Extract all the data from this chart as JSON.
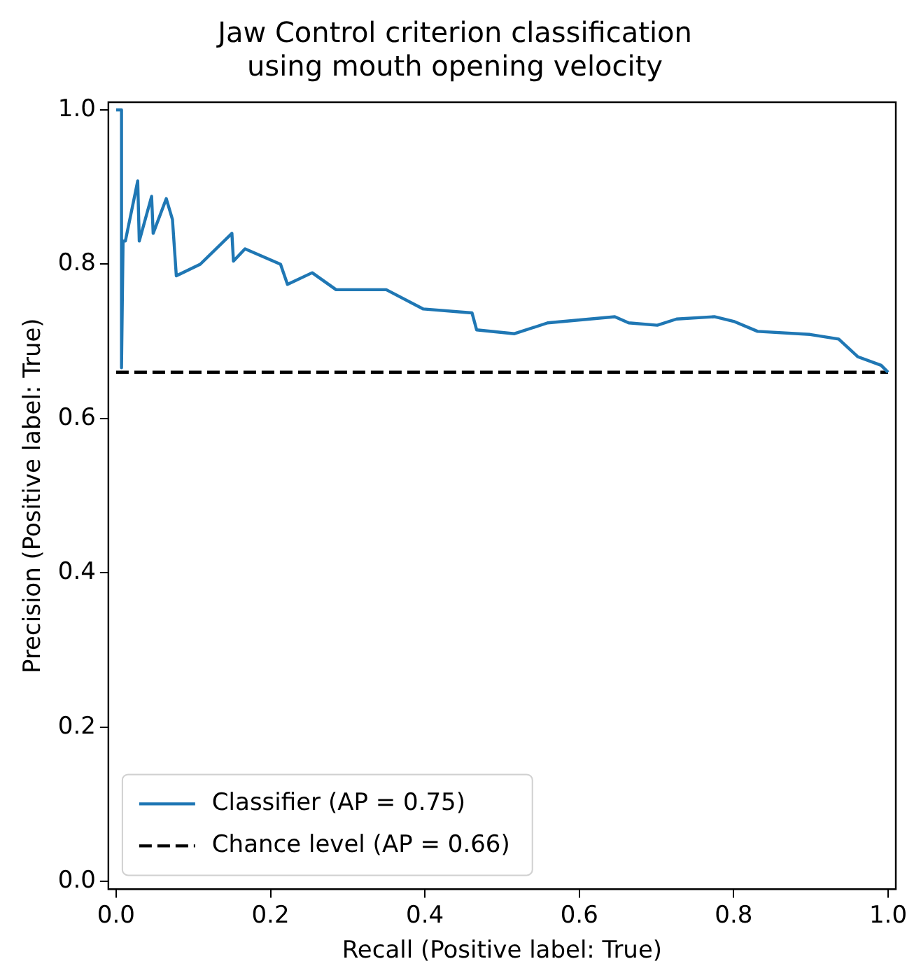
{
  "chart_data": {
    "type": "line",
    "title": "Jaw Control criterion classification\nusing mouth opening velocity",
    "xlabel": "Recall (Positive label: True)",
    "ylabel": "Precision (Positive label: True)",
    "xlim": [
      -0.01,
      1.01
    ],
    "ylim": [
      -0.01,
      1.01
    ],
    "xticks": [
      {
        "value": 0,
        "label": "0.0"
      },
      {
        "value": 0.2,
        "label": "0.2"
      },
      {
        "value": 0.4,
        "label": "0.4"
      },
      {
        "value": 0.6,
        "label": "0.6"
      },
      {
        "value": 0.8,
        "label": "0.8"
      },
      {
        "value": 1,
        "label": "1.0"
      }
    ],
    "yticks": [
      {
        "value": 0,
        "label": "0.0"
      },
      {
        "value": 0.2,
        "label": "0.2"
      },
      {
        "value": 0.4,
        "label": "0.4"
      },
      {
        "value": 0.6,
        "label": "0.6"
      },
      {
        "value": 0.8,
        "label": "0.8"
      },
      {
        "value": 1,
        "label": "1.0"
      }
    ],
    "grid": false,
    "legend": "bottom left",
    "marker": "none",
    "series": [
      {
        "name": "Classifier (AP = 0.75)",
        "color": "#1f77b4",
        "line_style": "solid",
        "x": [
          0,
          0.007,
          0.007,
          0.009,
          0.012,
          0.028,
          0.03,
          0.046,
          0.048,
          0.065,
          0.073,
          0.078,
          0.109,
          0.15,
          0.152,
          0.167,
          0.213,
          0.222,
          0.254,
          0.285,
          0.318,
          0.35,
          0.398,
          0.461,
          0.467,
          0.516,
          0.559,
          0.646,
          0.664,
          0.701,
          0.726,
          0.775,
          0.8,
          0.831,
          0.899,
          0.936,
          0.961,
          0.991,
          1.0
        ],
        "values": [
          1.0,
          1.0,
          0.666,
          0.83,
          0.83,
          0.908,
          0.83,
          0.888,
          0.84,
          0.885,
          0.858,
          0.785,
          0.8,
          0.84,
          0.804,
          0.82,
          0.8,
          0.774,
          0.789,
          0.767,
          0.767,
          0.767,
          0.742,
          0.737,
          0.715,
          0.71,
          0.724,
          0.732,
          0.724,
          0.721,
          0.729,
          0.732,
          0.726,
          0.713,
          0.709,
          0.703,
          0.68,
          0.669,
          0.66
        ]
      },
      {
        "name": "Chance level (AP = 0.66)",
        "color": "#000000",
        "line_style": "dashed",
        "x": [
          0,
          1
        ],
        "values": [
          0.66,
          0.66
        ]
      }
    ]
  }
}
